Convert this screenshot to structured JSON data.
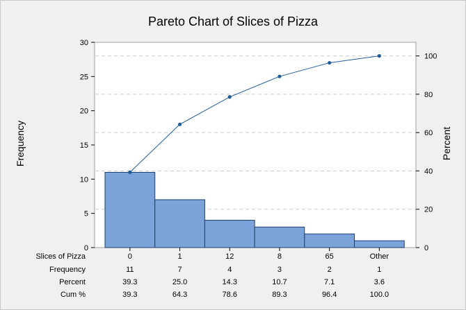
{
  "chart_data": {
    "type": "pareto",
    "title": "Pareto Chart of Slices of Pizza",
    "ylabel_left": "Frequency",
    "ylabel_right": "Percent",
    "ylim_left": [
      0,
      30
    ],
    "ylim_right": [
      0,
      107.1
    ],
    "yticks_left": [
      "0",
      "5",
      "10",
      "15",
      "20",
      "25",
      "30"
    ],
    "yticks_right": [
      "0",
      "20",
      "40",
      "60",
      "80",
      "100"
    ],
    "categories": [
      "0",
      "1",
      "12",
      "8",
      "65",
      "Other"
    ],
    "table": {
      "category_label": "Slices of Pizza",
      "rows": [
        {
          "label": "Frequency",
          "values": [
            "11",
            "7",
            "4",
            "3",
            "2",
            "1"
          ]
        },
        {
          "label": "Percent",
          "values": [
            "39.3",
            "25.0",
            "14.3",
            "10.7",
            "7.1",
            "3.6"
          ]
        },
        {
          "label": "Cum %",
          "values": [
            "39.3",
            "64.3",
            "78.6",
            "89.3",
            "96.4",
            "100.0"
          ]
        }
      ]
    },
    "series": [
      {
        "type": "bar",
        "values": [
          11,
          7,
          4,
          3,
          2,
          1
        ]
      },
      {
        "type": "line",
        "values": [
          39.3,
          64.3,
          78.6,
          89.3,
          96.4,
          100.0
        ]
      }
    ],
    "grid": "dashed horizontal at right-axis ticks",
    "colors": {
      "bar_fill": "#7ba3d9",
      "bar_stroke": "#1f3f6e",
      "line": "#1f5c99",
      "marker": "#1f5c99",
      "grid": "#cccccc"
    }
  }
}
